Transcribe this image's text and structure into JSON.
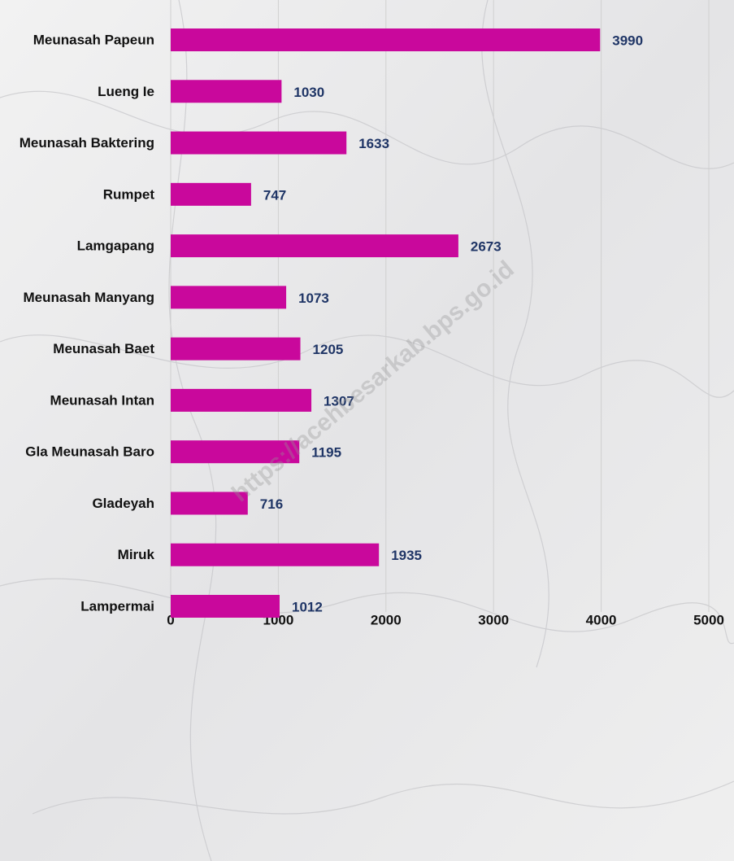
{
  "chart_data": {
    "type": "bar",
    "orientation": "horizontal",
    "categories": [
      "Meunasah Papeun",
      "Lueng Ie",
      "Meunasah Baktering",
      "Rumpet",
      "Lamgapang",
      "Meunasah Manyang",
      "Meunasah Baet",
      "Meunasah Intan",
      "Gla Meunasah Baro",
      "Gladeyah",
      "Miruk",
      "Lampermai"
    ],
    "values": [
      3990,
      1030,
      1633,
      747,
      2673,
      1073,
      1205,
      1307,
      1195,
      716,
      1935,
      1012
    ],
    "color": "#c9089c",
    "xlim": [
      0,
      5000
    ],
    "xticks": [
      0,
      1000,
      2000,
      3000,
      4000,
      5000
    ],
    "grid": true,
    "watermark": "https://acehbesarkab.bps.go.id"
  }
}
